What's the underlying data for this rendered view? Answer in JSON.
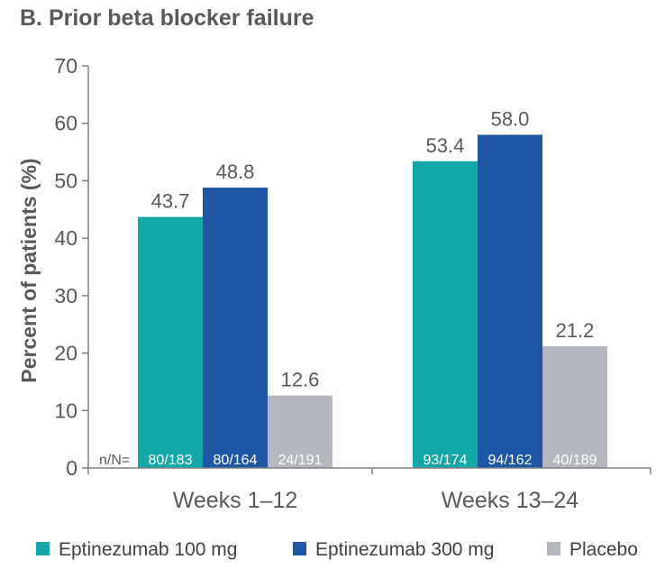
{
  "chart_data": {
    "type": "bar",
    "title": "B.  Prior beta blocker failure",
    "ylabel": "Percent of patients (%)",
    "xlabel": "",
    "ylim": [
      0,
      70
    ],
    "yticks": [
      "0",
      "10",
      "20",
      "30",
      "40",
      "50",
      "60",
      "70"
    ],
    "categories": [
      "Weeks  1–12",
      "Weeks  13–24"
    ],
    "n_prefix": "n/N=",
    "grid": false,
    "legend_position": "bottom",
    "series": [
      {
        "name": "Eptinezumab 100 mg",
        "color": "#13A8A8",
        "values": [
          43.7,
          53.4
        ],
        "value_labels": [
          "43.7",
          "53.4"
        ],
        "n_labels": [
          "80/183",
          "93/174"
        ]
      },
      {
        "name": "Eptinezumab 300 mg",
        "color": "#1F57A6",
        "values": [
          48.8,
          58.0
        ],
        "value_labels": [
          "48.8",
          "58.0"
        ],
        "n_labels": [
          "80/164",
          "94/162"
        ]
      },
      {
        "name": "Placebo",
        "color": "#B4B8BE",
        "values": [
          12.6,
          21.2
        ],
        "value_labels": [
          "12.6",
          "21.2"
        ],
        "n_labels": [
          "24/191",
          "40/189"
        ]
      }
    ]
  }
}
